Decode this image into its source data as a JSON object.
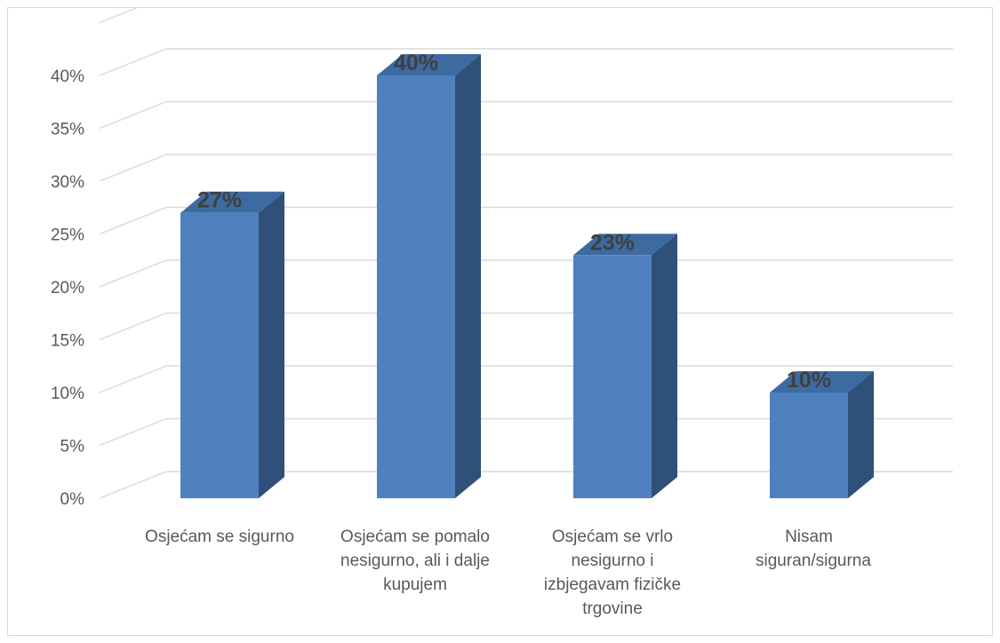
{
  "chart_data": {
    "type": "bar",
    "style": "3d-clustered-column",
    "title": "",
    "xlabel": "",
    "ylabel": "",
    "categories": [
      "Osjećam se sigurno",
      "Osjećam se pomalo nesigurno, ali i dalje kupujem",
      "Osjećam se vrlo nesigurno i izbjegavam fizičke trgovine",
      "Nisam siguran/sigurna"
    ],
    "values": [
      27,
      40,
      23,
      10
    ],
    "data_labels": [
      "27%",
      "40%",
      "23%",
      "10%"
    ],
    "ylim": [
      0,
      45
    ],
    "yticks": [
      "0%",
      "5%",
      "10%",
      "15%",
      "20%",
      "25%",
      "30%",
      "35%",
      "40%"
    ],
    "grid": true,
    "legend": "none",
    "colors": {
      "bar_front": "#4e81bd",
      "bar_side": "#2f5079",
      "bar_top": "#3d6aa0",
      "grid": "#d9d9d9",
      "text": "#595959",
      "data_label": "#404040"
    }
  }
}
